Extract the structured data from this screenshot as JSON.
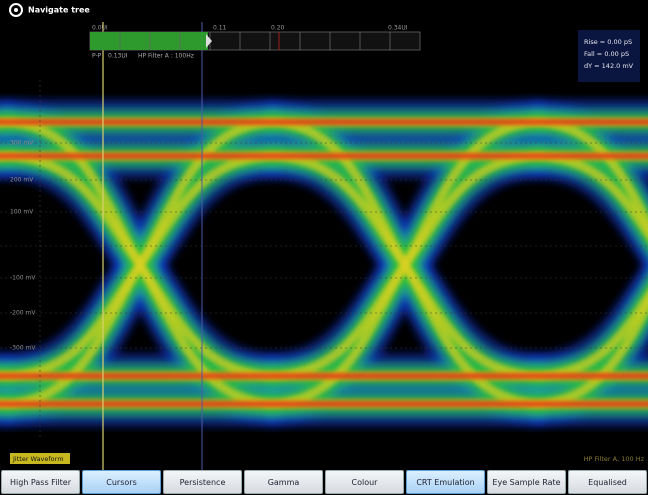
{
  "header": {
    "title": "Navigate tree"
  },
  "scale": {
    "labels": [
      "0.0UI",
      "0.11",
      "0.20",
      "0.34UI"
    ]
  },
  "readout": {
    "pp_label": "P-P",
    "pp_value": "0.13UI",
    "filter": "HP Filter A : 100Hz"
  },
  "measurements": [
    "Rise = 0.00 pS",
    "Fall = 0.00 pS",
    "dY = 142.0 mV"
  ],
  "y_axis_labels": [
    "300 mV",
    "200 mV",
    "100 mV",
    "-100 mV",
    "-200 mV",
    "-300 mV"
  ],
  "footer": {
    "left": "Jitter Waveform",
    "right": "HP Filter A, 100 Hz"
  },
  "buttons": [
    {
      "label": "High Pass Filter",
      "active": false
    },
    {
      "label": "Cursors",
      "active": true
    },
    {
      "label": "Persistence",
      "active": false
    },
    {
      "label": "Gamma",
      "active": false
    },
    {
      "label": "Colour",
      "active": false
    },
    {
      "label": "CRT Emulation",
      "active": true
    },
    {
      "label": "Eye Sample Rate",
      "active": false
    },
    {
      "label": "Equalised",
      "active": false
    }
  ]
}
